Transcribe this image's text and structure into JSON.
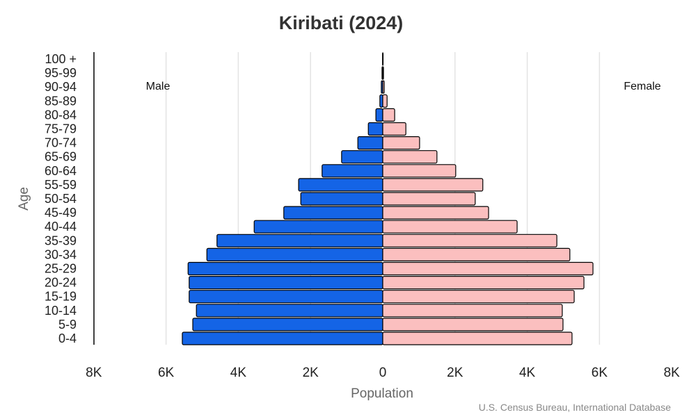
{
  "chart_data": {
    "type": "bar",
    "title": "Kiribati (2024)",
    "xlabel": "Population",
    "ylabel": "Age",
    "source": "U.S. Census Bureau, International Database",
    "xlim": [
      -8000,
      8000
    ],
    "x_tick_labels": [
      "8K",
      "6K",
      "4K",
      "2K",
      "0",
      "2K",
      "4K",
      "6K",
      "8K"
    ],
    "grid": "vertical",
    "categories": [
      "0-4",
      "5-9",
      "10-14",
      "15-19",
      "20-24",
      "25-29",
      "30-34",
      "35-39",
      "40-44",
      "45-49",
      "50-54",
      "55-59",
      "60-64",
      "65-69",
      "70-74",
      "75-79",
      "80-84",
      "85-89",
      "90-94",
      "95-99",
      "100 +"
    ],
    "series": [
      {
        "name": "Male",
        "color": "#1464e6",
        "values": [
          5550,
          5260,
          5160,
          5360,
          5360,
          5390,
          4870,
          4590,
          3560,
          2740,
          2270,
          2330,
          1680,
          1140,
          690,
          400,
          190,
          80,
          40,
          20,
          5
        ]
      },
      {
        "name": "Female",
        "color": "#fbbfbf",
        "values": [
          5240,
          4990,
          4970,
          5300,
          5570,
          5820,
          5180,
          4820,
          3720,
          2930,
          2560,
          2770,
          2020,
          1500,
          1020,
          640,
          330,
          120,
          40,
          20,
          5
        ]
      }
    ]
  }
}
